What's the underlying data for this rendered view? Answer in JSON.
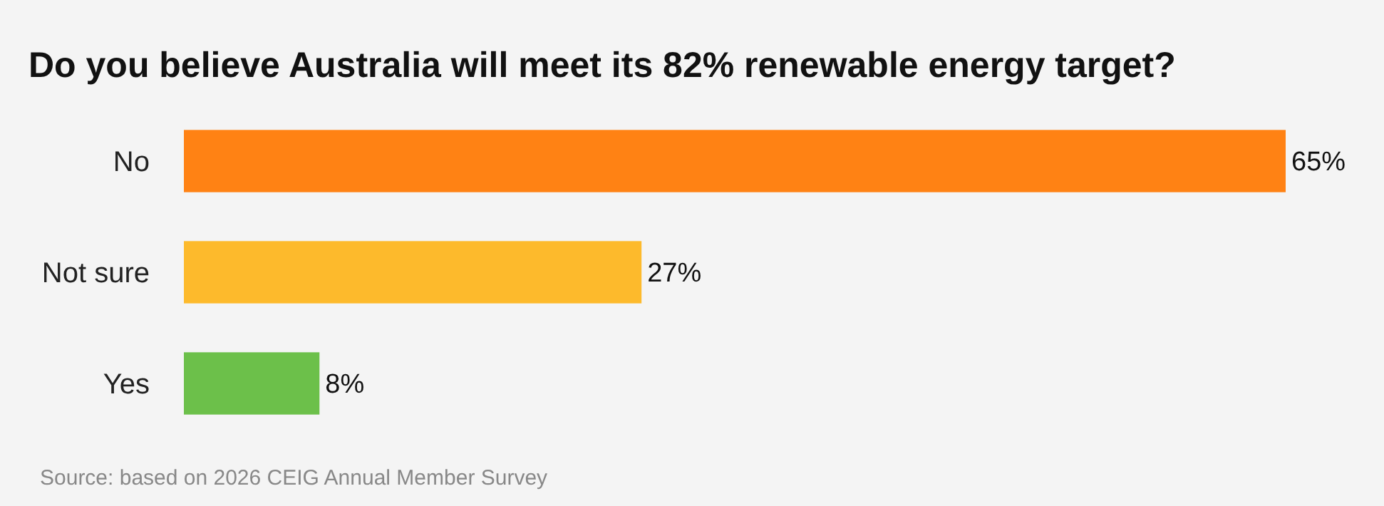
{
  "chart_data": {
    "type": "bar",
    "orientation": "horizontal",
    "title": "Do you believe Australia will meet its 82% renewable energy target?",
    "categories": [
      "No",
      "Not sure",
      "Yes"
    ],
    "values": [
      65,
      27,
      8
    ],
    "colors": [
      "#ff8214",
      "#fdba2c",
      "#6cc04a"
    ],
    "value_labels": [
      "65%",
      "27%",
      "8%"
    ],
    "annotations": [
      "Source: based on 2026 CEIG Annual Member Survey"
    ]
  }
}
